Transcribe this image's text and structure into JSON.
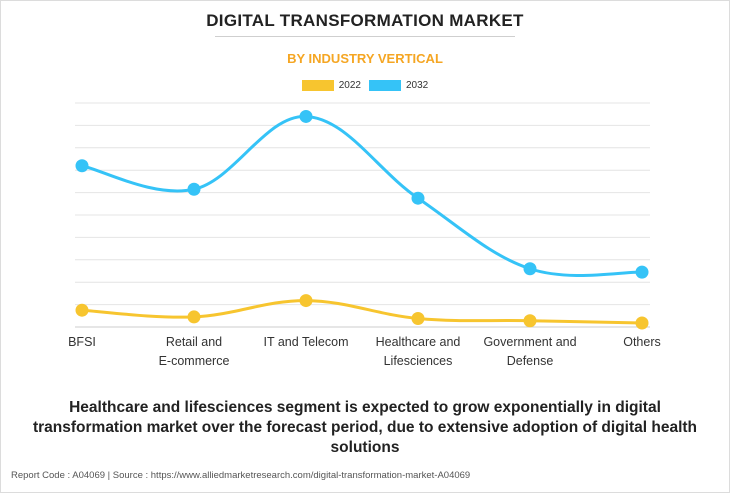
{
  "colors": {
    "series_2022": "#f7c52f",
    "series_2032": "#35c3f7",
    "subtitle": "#f5a623",
    "grid": "#e4e4e4"
  },
  "chart_data": {
    "type": "line",
    "title": "DIGITAL TRANSFORMATION MARKET",
    "subtitle": "BY INDUSTRY VERTICAL",
    "xlabel": "",
    "ylabel": "",
    "categories": [
      [
        "BFSI"
      ],
      [
        "Retail and",
        "E-commerce"
      ],
      [
        "IT and Telecom"
      ],
      [
        "Healthcare and",
        "Lifesciences"
      ],
      [
        "Government and",
        "Defense"
      ],
      [
        "Others"
      ]
    ],
    "series": [
      {
        "name": "2022",
        "values": [
          7.5,
          4.5,
          11.8,
          3.8,
          2.8,
          1.8
        ]
      },
      {
        "name": "2032",
        "values": [
          72.0,
          61.5,
          94.0,
          57.5,
          26.0,
          24.5
        ]
      }
    ],
    "ylim": [
      0,
      100
    ],
    "grid": true,
    "legend": "top-center"
  },
  "caption": "Healthcare and lifesciences segment is expected to grow exponentially in digital transformation market over the forecast period, due to extensive adoption of digital health solutions",
  "footer": "Report Code : A04069  |  Source : https://www.alliedmarketresearch.com/digital-transformation-market-A04069"
}
